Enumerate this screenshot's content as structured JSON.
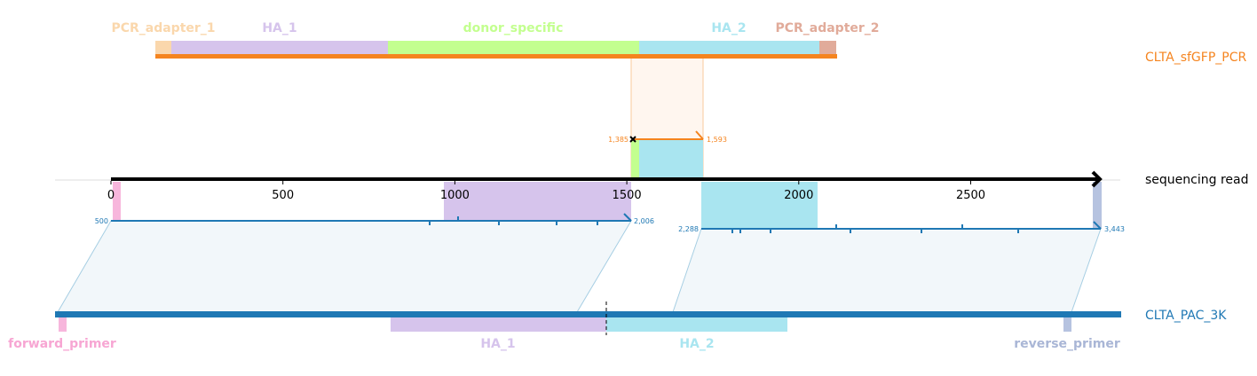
{
  "top_track": {
    "name": "CLTA_sfGFP_PCR",
    "color": "#f5841f",
    "features": [
      {
        "label": "PCR_adapter_1",
        "color": "#fad7ac"
      },
      {
        "label": "HA_1",
        "color": "#d6c4ec"
      },
      {
        "label": "donor_specific",
        "color": "#c3ff8f"
      },
      {
        "label": "HA_2",
        "color": "#a9e5f0"
      },
      {
        "label": "PCR_adapter_2",
        "color": "#e1ab9a"
      }
    ],
    "alignment_start": "1,385",
    "alignment_end": "1,593"
  },
  "read_track": {
    "name": "sequencing read",
    "axis_ticks": [
      "0",
      "500",
      "1000",
      "1500",
      "2000",
      "2500"
    ],
    "alignment_1_start": "500",
    "alignment_1_end": "2,006",
    "alignment_2_start": "2,288",
    "alignment_2_end": "3,443"
  },
  "bottom_track": {
    "name": "CLTA_PAC_3K",
    "color": "#1f78b4",
    "features": [
      {
        "label": "forward_primer",
        "color": "#f7b6dc"
      },
      {
        "label": "HA_1",
        "color": "#d6c4ec"
      },
      {
        "label": "HA_2",
        "color": "#a9e5f0"
      },
      {
        "label": "reverse_primer",
        "color": "#b6c3e0"
      }
    ]
  },
  "colors": {
    "top_alignment": "#f5841f",
    "bottom_alignment": "#1f78b4",
    "read_axis": "#000000"
  }
}
